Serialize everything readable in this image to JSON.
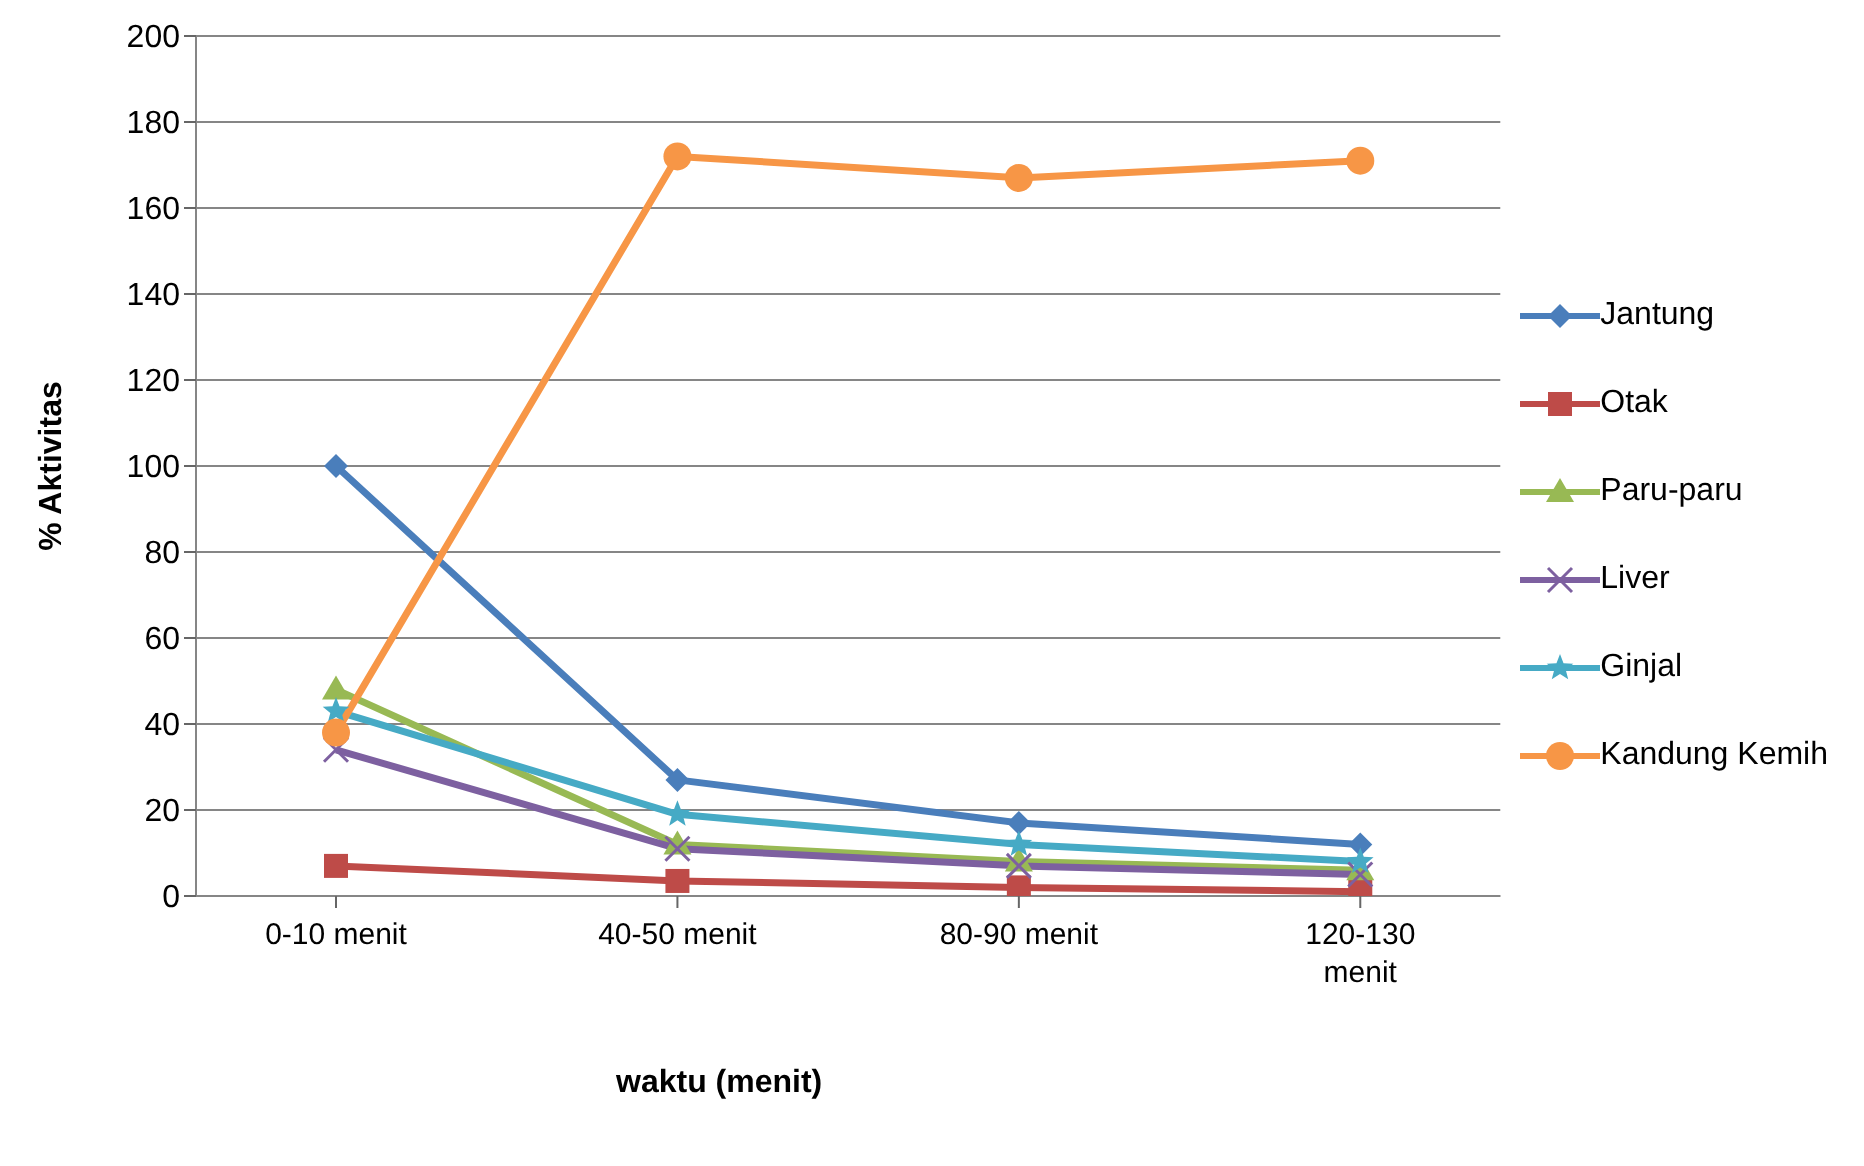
{
  "chart_data": {
    "type": "line",
    "xlabel": "waktu (menit)",
    "ylabel": "%  Aktivitas",
    "categories": [
      "0-10 menit",
      "40-50 menit",
      "80-90 menit",
      "120-130 menit"
    ],
    "series": [
      {
        "name": "Jantung",
        "color": "#4a7ebb",
        "marker": "diamond",
        "values": [
          100,
          27,
          17,
          12
        ]
      },
      {
        "name": "Otak",
        "color": "#be4b48",
        "marker": "square",
        "values": [
          7,
          3.5,
          2,
          1
        ]
      },
      {
        "name": "Paru-paru",
        "color": "#98b954",
        "marker": "triangle",
        "values": [
          48,
          12,
          8,
          6
        ]
      },
      {
        "name": "Liver",
        "color": "#7d60a0",
        "marker": "cross",
        "values": [
          34,
          11,
          7,
          5
        ]
      },
      {
        "name": "Ginjal",
        "color": "#46aac5",
        "marker": "star",
        "values": [
          43,
          19,
          12,
          8
        ]
      },
      {
        "name": "Kandung Kemih",
        "color": "#f79646",
        "marker": "circle",
        "values": [
          38,
          172,
          167,
          171
        ]
      }
    ],
    "ylim": [
      0,
      200
    ],
    "yticks": [
      0,
      20,
      40,
      60,
      80,
      100,
      120,
      140,
      160,
      180,
      200
    ],
    "grid": "y",
    "legend": "right"
  }
}
